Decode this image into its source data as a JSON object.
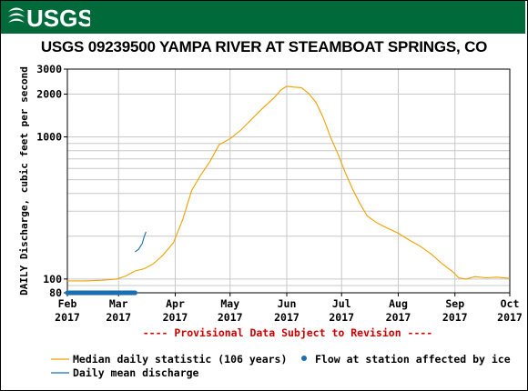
{
  "header": {
    "logo_text": "USGS",
    "brand_color": "#006a3a"
  },
  "chart_data": {
    "type": "line",
    "title": "USGS 09239500 YAMPA RIVER AT STEAMBOAT SPRINGS, CO",
    "ylabel": "DAILY Discharge, cubic feet per second",
    "yscale": "log",
    "ylim": [
      80,
      3000
    ],
    "ytick_labels": [
      {
        "value": 80,
        "label": "80"
      },
      {
        "value": 100,
        "label": "100"
      },
      {
        "value": 1000,
        "label": "1000"
      },
      {
        "value": 2000,
        "label": "2000"
      },
      {
        "value": 3000,
        "label": "3000"
      }
    ],
    "xlim": [
      "2017-02-01",
      "2017-10-01"
    ],
    "xtick_labels": [
      {
        "date": "2017-02-01",
        "month": "Feb",
        "year": "2017"
      },
      {
        "date": "2017-03-01",
        "month": "Mar",
        "year": "2017"
      },
      {
        "date": "2017-04-01",
        "month": "Apr",
        "year": "2017"
      },
      {
        "date": "2017-05-01",
        "month": "May",
        "year": "2017"
      },
      {
        "date": "2017-06-01",
        "month": "Jun",
        "year": "2017"
      },
      {
        "date": "2017-07-01",
        "month": "Jul",
        "year": "2017"
      },
      {
        "date": "2017-08-01",
        "month": "Aug",
        "year": "2017"
      },
      {
        "date": "2017-09-01",
        "month": "Sep",
        "year": "2017"
      },
      {
        "date": "2017-10-01",
        "month": "Oct",
        "year": "2017"
      }
    ],
    "grid": true,
    "provisional_note": "---- Provisional Data Subject to Revision ----",
    "series": [
      {
        "name": "Median daily statistic (106 years)",
        "color": "#f0a000",
        "points": [
          [
            "2017-02-01",
            97
          ],
          [
            "2017-02-10",
            97
          ],
          [
            "2017-02-20",
            98
          ],
          [
            "2017-02-28",
            100
          ],
          [
            "2017-03-05",
            105
          ],
          [
            "2017-03-10",
            114
          ],
          [
            "2017-03-15",
            118
          ],
          [
            "2017-03-20",
            128
          ],
          [
            "2017-03-25",
            146
          ],
          [
            "2017-03-31",
            180
          ],
          [
            "2017-04-05",
            260
          ],
          [
            "2017-04-10",
            420
          ],
          [
            "2017-04-15",
            540
          ],
          [
            "2017-04-20",
            670
          ],
          [
            "2017-04-25",
            880
          ],
          [
            "2017-05-01",
            970
          ],
          [
            "2017-05-07",
            1120
          ],
          [
            "2017-05-13",
            1340
          ],
          [
            "2017-05-19",
            1600
          ],
          [
            "2017-05-25",
            1880
          ],
          [
            "2017-05-29",
            2150
          ],
          [
            "2017-06-01",
            2270
          ],
          [
            "2017-06-05",
            2240
          ],
          [
            "2017-06-09",
            2220
          ],
          [
            "2017-06-13",
            2020
          ],
          [
            "2017-06-17",
            1750
          ],
          [
            "2017-06-21",
            1360
          ],
          [
            "2017-06-25",
            990
          ],
          [
            "2017-06-29",
            760
          ],
          [
            "2017-07-03",
            560
          ],
          [
            "2017-07-07",
            430
          ],
          [
            "2017-07-11",
            340
          ],
          [
            "2017-07-15",
            278
          ],
          [
            "2017-07-20",
            250
          ],
          [
            "2017-07-26",
            228
          ],
          [
            "2017-08-01",
            210
          ],
          [
            "2017-08-07",
            188
          ],
          [
            "2017-08-13",
            170
          ],
          [
            "2017-08-19",
            150
          ],
          [
            "2017-08-25",
            128
          ],
          [
            "2017-08-31",
            112
          ],
          [
            "2017-09-03",
            102
          ],
          [
            "2017-09-07",
            100
          ],
          [
            "2017-09-12",
            104
          ],
          [
            "2017-09-18",
            102
          ],
          [
            "2017-09-24",
            103
          ],
          [
            "2017-10-01",
            101
          ]
        ]
      },
      {
        "name": "Daily mean discharge",
        "color": "#1a6fb0",
        "points": [
          [
            "2017-03-10",
            155
          ],
          [
            "2017-03-12",
            162
          ],
          [
            "2017-03-14",
            178
          ],
          [
            "2017-03-15",
            198
          ],
          [
            "2017-03-16",
            215
          ]
        ]
      },
      {
        "name": "Flow at station affected by ice",
        "color": "#1a6fb0",
        "marker": "dot",
        "points_start": "2017-02-01",
        "points_end": "2017-03-10",
        "value": 80
      }
    ]
  }
}
